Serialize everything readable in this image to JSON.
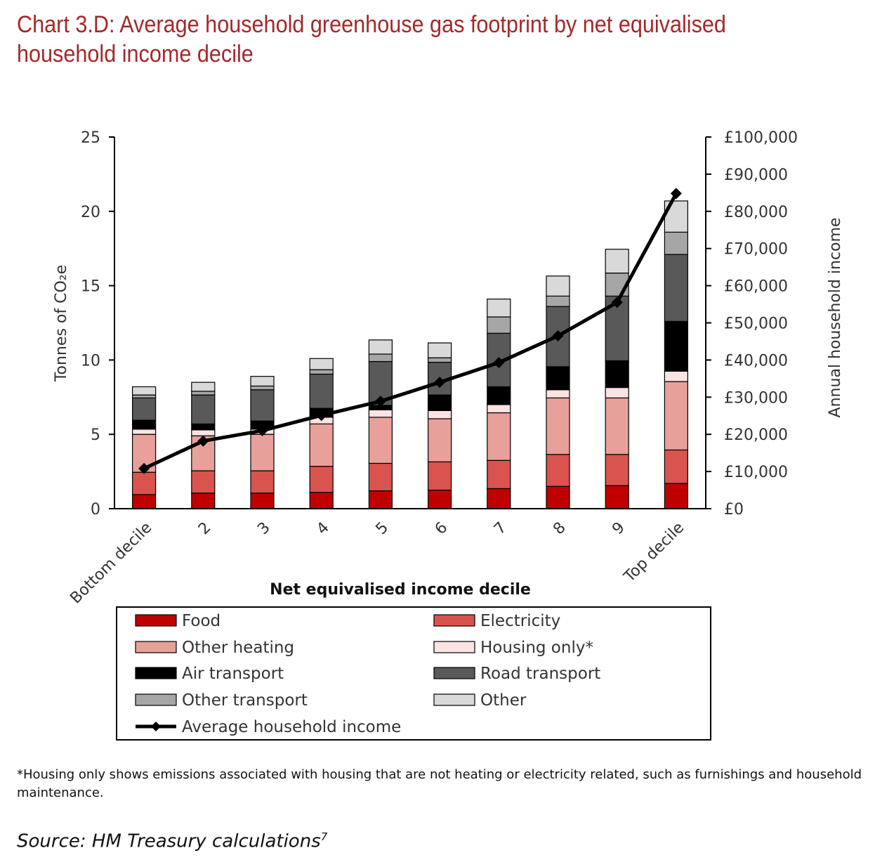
{
  "title": "Chart 3.D: Average household greenhouse gas footprint by net equivalised household income decile",
  "footnote": "*Housing only shows emissions associated with housing that are not heating or electricity related, such as furnishings and household maintenance.",
  "source": "Source: HM Treasury calculations",
  "source_superscript": "7",
  "chart_data": {
    "type": "bar",
    "stacked": true,
    "xlabel": "Net equivalised income decile",
    "ylabel_left": "Tonnes of CO₂e",
    "ylabel_right": "Annual household income",
    "ylim_left": [
      0,
      25
    ],
    "ylim_right": [
      0,
      100000
    ],
    "yticks_left": [
      0,
      5,
      10,
      15,
      20,
      25
    ],
    "yticks_right_labels": [
      "£0",
      "£10,000",
      "£20,000",
      "£30,000",
      "£40,000",
      "£50,000",
      "£60,000",
      "£70,000",
      "£80,000",
      "£90,000",
      "£100,000"
    ],
    "categories": [
      "Bottom decile",
      "2",
      "3",
      "4",
      "5",
      "6",
      "7",
      "8",
      "9",
      "Top decile"
    ],
    "grid": false,
    "legend_position": "bottom",
    "series": [
      {
        "name": "Food",
        "color": "#c00000",
        "values": [
          0.95,
          1.05,
          1.05,
          1.1,
          1.2,
          1.25,
          1.35,
          1.5,
          1.55,
          1.7
        ]
      },
      {
        "name": "Electricity",
        "color": "#d9534f",
        "values": [
          1.5,
          1.5,
          1.5,
          1.75,
          1.85,
          1.9,
          1.9,
          2.15,
          2.1,
          2.25
        ]
      },
      {
        "name": "Other heating",
        "color": "#e8a09a",
        "values": [
          2.55,
          2.35,
          2.45,
          2.85,
          3.1,
          2.9,
          3.2,
          3.8,
          3.8,
          4.6
        ]
      },
      {
        "name": "Housing only*",
        "color": "#fbe3e3",
        "values": [
          0.35,
          0.4,
          0.35,
          0.45,
          0.5,
          0.55,
          0.55,
          0.55,
          0.7,
          0.7
        ]
      },
      {
        "name": "Air transport",
        "color": "#000000",
        "values": [
          0.6,
          0.4,
          0.55,
          0.6,
          0.3,
          1.05,
          1.2,
          1.55,
          1.8,
          3.35
        ]
      },
      {
        "name": "Road transport",
        "color": "#595959",
        "values": [
          1.5,
          1.95,
          2.1,
          2.3,
          2.95,
          2.2,
          3.6,
          4.05,
          4.35,
          4.5
        ]
      },
      {
        "name": "Other transport",
        "color": "#a6a6a6",
        "values": [
          0.2,
          0.25,
          0.25,
          0.3,
          0.5,
          0.3,
          1.1,
          0.7,
          1.55,
          1.5
        ]
      },
      {
        "name": "Other",
        "color": "#d9d9d9",
        "values": [
          0.55,
          0.6,
          0.65,
          0.75,
          0.95,
          1.0,
          1.2,
          1.35,
          1.6,
          2.1
        ]
      }
    ],
    "line_series": {
      "name": "Average household income",
      "axis": "right",
      "color": "#000000",
      "values": [
        10800,
        18200,
        21000,
        25100,
        28900,
        34000,
        39300,
        46500,
        55500,
        84800
      ]
    }
  }
}
